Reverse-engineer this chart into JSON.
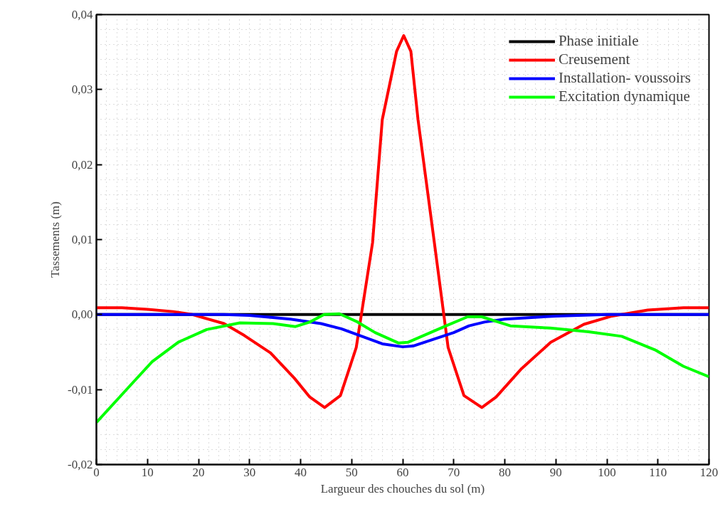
{
  "chart_data": {
    "type": "line",
    "xlabel": "Largueur des chouches du sol (m)",
    "ylabel": "Tassements (m)",
    "xlim": [
      0,
      120
    ],
    "xticks": [
      0,
      10,
      20,
      30,
      40,
      50,
      60,
      70,
      80,
      90,
      100,
      110,
      120
    ],
    "ylim": [
      -0.02,
      0.04
    ],
    "yticks": [
      {
        "value": -0.02,
        "label": "-0,02"
      },
      {
        "value": -0.01,
        "label": "-0,01"
      },
      {
        "value": 0,
        "label": "0,00"
      },
      {
        "value": 0.01,
        "label": "0,01"
      },
      {
        "value": 0.02,
        "label": "0,02"
      },
      {
        "value": 0.03,
        "label": "0,03"
      },
      {
        "value": 0.04,
        "label": "0,04"
      }
    ],
    "grid": true,
    "legend": "top right",
    "marker": "none",
    "line_style": "solid",
    "series": [
      {
        "name": "Phase initiale",
        "color": "#000000",
        "x": [
          0,
          120
        ],
        "values": [
          0,
          0
        ]
      },
      {
        "name": "Creusement",
        "color": "#ff0000",
        "x": [
          0,
          5,
          10,
          15,
          18.8,
          25,
          29,
          34.1,
          38.8,
          41.8,
          44.7,
          47.8,
          50.9,
          54.1,
          56,
          58.8,
          60.2,
          61.6,
          63,
          66.2,
          68.9,
          72,
          75.5,
          78.3,
          83.3,
          89,
          95.5,
          101,
          108,
          115,
          120
        ],
        "values": [
          0.0009,
          0.0009,
          0.0007,
          0.0004,
          0,
          -0.0012,
          -0.0028,
          -0.0051,
          -0.0085,
          -0.011,
          -0.0124,
          -0.0108,
          -0.0044,
          0.0096,
          0.026,
          0.0351,
          0.0372,
          0.0351,
          0.026,
          0.0096,
          -0.0044,
          -0.0108,
          -0.0124,
          -0.011,
          -0.0072,
          -0.0037,
          -0.0013,
          -0.0002,
          0.0006,
          0.0009,
          0.0009
        ]
      },
      {
        "name": "Installation- voussoirs",
        "color": "#0000ff",
        "x": [
          0,
          25,
          30,
          38,
          44,
          48,
          52,
          56,
          60,
          62,
          66,
          70,
          73,
          76,
          80,
          90,
          100,
          120
        ],
        "values": [
          0,
          0,
          -0.0001,
          -0.0006,
          -0.0012,
          -0.0019,
          -0.0029,
          -0.0039,
          -0.0043,
          -0.0042,
          -0.0033,
          -0.0024,
          -0.0015,
          -0.001,
          -0.0006,
          -0.0002,
          0,
          0
        ]
      },
      {
        "name": "Excitation dynamique",
        "color": "#00ff00",
        "x": [
          0,
          6.3,
          10.9,
          16,
          21.6,
          28.1,
          34.6,
          39,
          41.8,
          44.6,
          47.6,
          50.9,
          54.6,
          59.2,
          61,
          68.5,
          72.7,
          75.5,
          81.1,
          88.9,
          96.4,
          102.9,
          109.4,
          115,
          120
        ],
        "values": [
          -0.0144,
          -0.0097,
          -0.0063,
          -0.0037,
          -0.002,
          -0.0011,
          -0.0012,
          -0.0016,
          -0.001,
          0,
          0.0001,
          -0.0009,
          -0.0024,
          -0.0038,
          -0.0037,
          -0.0015,
          -0.0003,
          -0.0003,
          -0.0015,
          -0.0018,
          -0.0023,
          -0.0029,
          -0.0047,
          -0.0069,
          -0.0083
        ]
      }
    ]
  }
}
